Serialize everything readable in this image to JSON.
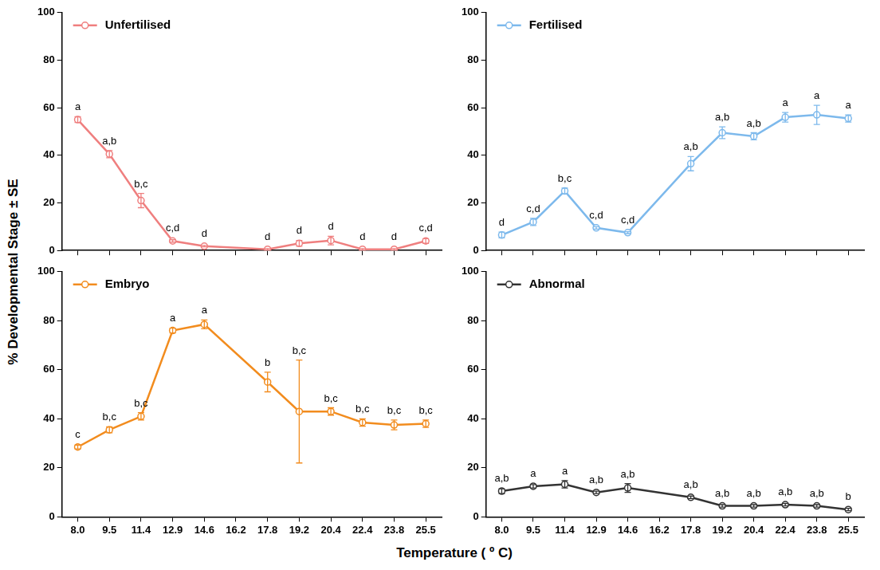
{
  "y_label": "% Developmental Stage ± SE",
  "x_label": "Temperature ( º C)",
  "chart_data": [
    {
      "type": "line",
      "legend": "upper left",
      "grid": false,
      "tick_labels": "y",
      "categories": [
        "8.0",
        "9.5",
        "11.4",
        "12.9",
        "14.6",
        "16.2",
        "17.8",
        "19.2",
        "20.4",
        "22.4",
        "23.8",
        "25.5"
      ],
      "ylim": [
        0,
        100
      ],
      "yticks": [
        0,
        20,
        40,
        60,
        80,
        100
      ],
      "series": [
        {
          "name": "Unfertilised",
          "color": "#ef7f7f",
          "marker": "circle",
          "line_style": "solid",
          "values": [
            55,
            40.5,
            21,
            4,
            1.8,
            null,
            0.5,
            3,
            4.2,
            0.5,
            0.5,
            4
          ],
          "errors": [
            1.2,
            1.5,
            3,
            0.5,
            0.3,
            null,
            0.3,
            1.2,
            1.8,
            0.3,
            0.3,
            1
          ],
          "letters": [
            "a",
            "a,b",
            "b,c",
            "c,d",
            "d",
            null,
            "d",
            "d",
            "d",
            "d",
            "d",
            "c,d"
          ]
        }
      ]
    },
    {
      "type": "line",
      "legend": "upper left",
      "grid": false,
      "tick_labels": "y",
      "categories": [
        "8.0",
        "9.5",
        "11.4",
        "12.9",
        "14.6",
        "16.2",
        "17.8",
        "19.2",
        "20.4",
        "22.4",
        "23.8",
        "25.5"
      ],
      "ylim": [
        0,
        100
      ],
      "yticks": [
        0,
        20,
        40,
        60,
        80,
        100
      ],
      "series": [
        {
          "name": "Fertilised",
          "color": "#7db9ec",
          "marker": "circle",
          "line_style": "solid",
          "values": [
            6.5,
            12,
            25,
            9.5,
            7.5,
            null,
            36.5,
            49.5,
            48,
            56,
            57,
            55.5
          ],
          "errors": [
            1.2,
            1.5,
            1.2,
            0.5,
            0.4,
            null,
            3,
            2.5,
            1.5,
            2,
            4,
            1.5
          ],
          "letters": [
            "d",
            "c,d",
            "b,c",
            "c,d",
            "c,d",
            null,
            "a,b",
            "a,b",
            "a,b",
            "a",
            "a",
            "a"
          ]
        }
      ]
    },
    {
      "type": "line",
      "legend": "upper left",
      "grid": false,
      "categories": [
        "8.0",
        "9.5",
        "11.4",
        "12.9",
        "14.6",
        "16.2",
        "17.8",
        "19.2",
        "20.4",
        "22.4",
        "23.8",
        "25.5"
      ],
      "ylim": [
        0,
        100
      ],
      "yticks": [
        0,
        20,
        40,
        60,
        80,
        100
      ],
      "series": [
        {
          "name": "Embryo",
          "color": "#f28c1e",
          "marker": "circle",
          "line_style": "solid",
          "values": [
            28.5,
            35.5,
            41,
            76,
            78.5,
            null,
            55,
            43,
            43,
            38.5,
            37.5,
            38
          ],
          "errors": [
            0.8,
            1.2,
            1.5,
            1,
            1.8,
            null,
            4,
            21,
            1.5,
            1.5,
            2,
            1.5
          ],
          "letters": [
            "c",
            "b,c",
            "b,c",
            "a",
            "a",
            null,
            "b",
            "b,c",
            "b,c",
            "b,c",
            "b,c",
            "b,c"
          ]
        }
      ]
    },
    {
      "type": "line",
      "legend": "upper left",
      "grid": false,
      "categories": [
        "8.0",
        "9.5",
        "11.4",
        "12.9",
        "14.6",
        "16.2",
        "17.8",
        "19.2",
        "20.4",
        "22.4",
        "23.8",
        "25.5"
      ],
      "ylim": [
        0,
        100
      ],
      "yticks": [
        0,
        20,
        40,
        60,
        80,
        100
      ],
      "series": [
        {
          "name": "Abnormal",
          "color": "#333333",
          "marker": "circle",
          "line_style": "solid",
          "values": [
            10.5,
            12.5,
            13.3,
            10,
            11.8,
            null,
            8,
            4.5,
            4.5,
            5,
            4.5,
            3
          ],
          "errors": [
            1,
            0.7,
            1.5,
            0.5,
            1.8,
            null,
            0.5,
            0.5,
            0.5,
            0.5,
            0.5,
            0.5
          ],
          "letters": [
            "a,b",
            "a",
            "a",
            "a,b",
            "a,b",
            null,
            "a,b",
            "a,b",
            "a,b",
            "a,b",
            "a,b",
            "b"
          ]
        }
      ]
    }
  ]
}
